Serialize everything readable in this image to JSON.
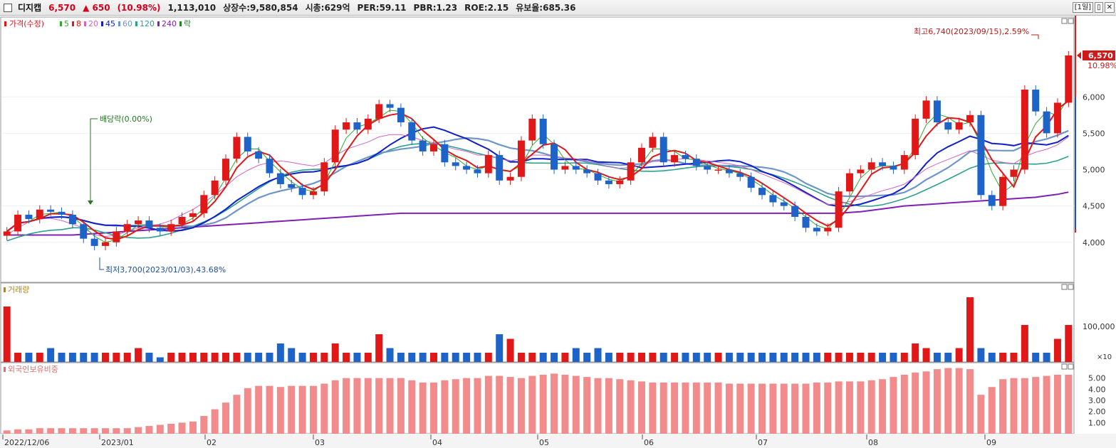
{
  "header": {
    "name": "디지캡",
    "price": "6,570",
    "change": "▲ 650",
    "change_pct": "(10.98%)",
    "volume": "1,113,010",
    "shares": "상장수:9,580,854",
    "mktcap": "시총:629억",
    "per": "PER:59.11",
    "pbr": "PBR:1.23",
    "roe": "ROE:2.15",
    "float_ratio": "유보율:685.36",
    "period_btn": "[1일]",
    "dock_btn": "▯",
    "close_btn": "✕"
  },
  "legend": {
    "price_label": "가격(수정)",
    "ma": [
      "5",
      "8",
      "20",
      "45",
      "60",
      "120",
      "240"
    ],
    "ma_colors": [
      "#2eaa2e",
      "#e01818",
      "#d264c8",
      "#1020c8",
      "#6e96c8",
      "#2da08c",
      "#8020b4"
    ],
    "ex_label": "락"
  },
  "annotations": {
    "high": "최고6,740(2023/09/15),2.59%",
    "low": "최저3,700(2023/01/03),43.68%",
    "dividend": "배당락(0.00%)",
    "last_price": "6,570",
    "last_pct": "10.98%"
  },
  "volume_panel": {
    "label": "거래량",
    "tick": "100,000",
    "scale": "×10"
  },
  "foreign_panel": {
    "label": "외국인보유비중",
    "ticks": [
      "5.00",
      "4.00",
      "3.00",
      "2.00",
      "1.00"
    ]
  },
  "x_labels": [
    "2022/12/06",
    "2023/01",
    "02",
    "03",
    "04",
    "05",
    "06",
    "07",
    "08",
    "09"
  ],
  "chart_data": {
    "type": "candlestick",
    "title": "디지캡",
    "y_ticks": [
      4000,
      4500,
      5000,
      5500,
      6000
    ],
    "y_tick_labels": [
      "4,000",
      "4,500",
      "5,000",
      "5,500",
      "6,000"
    ],
    "ylim": [
      3450,
      7000
    ],
    "colors": {
      "up": "#e01818",
      "down": "#1e64c8"
    },
    "high": 6740,
    "low": 3700,
    "last": 6570,
    "close_series": [
      4150,
      4380,
      4320,
      4450,
      4420,
      4380,
      4250,
      4050,
      3950,
      4000,
      4150,
      4250,
      4300,
      4200,
      4150,
      4250,
      4350,
      4400,
      4650,
      4850,
      5150,
      5450,
      5250,
      5150,
      4950,
      4800,
      4750,
      4650,
      4700,
      5100,
      5550,
      5650,
      5550,
      5700,
      5900,
      5850,
      5650,
      5400,
      5250,
      5350,
      5100,
      5050,
      5000,
      4950,
      5200,
      4850,
      4900,
      5400,
      5700,
      5350,
      5000,
      5050,
      5000,
      4950,
      4850,
      4800,
      4850,
      5100,
      5300,
      5450,
      5100,
      5200,
      5150,
      5050,
      5000,
      5000,
      4950,
      4900,
      4750,
      4650,
      4550,
      4500,
      4350,
      4200,
      4150,
      4200,
      4700,
      4950,
      5000,
      5100,
      5050,
      5000,
      5200,
      5700,
      5950,
      5650,
      5550,
      5650,
      5750,
      4650,
      4500,
      4900,
      5000,
      6100,
      5800,
      5500,
      5920,
      6570
    ],
    "ma20_series": [
      4100,
      4200,
      4280,
      4320,
      4330,
      4300,
      4250,
      4200,
      4100,
      4080,
      4100,
      4150,
      4200,
      4230,
      4250,
      4300,
      4380,
      4450,
      4550,
      4650,
      4770,
      4900,
      4990,
      5060,
      5100,
      5120,
      5100,
      5070,
      5050,
      5090,
      5190,
      5280,
      5330,
      5380,
      5450,
      5480,
      5480,
      5450,
      5400,
      5370,
      5320,
      5280,
      5250,
      5200,
      5200,
      5150,
      5120,
      5150,
      5200,
      5200,
      5180,
      5160,
      5150,
      5120,
      5080,
      5040,
      5020,
      5030,
      5060,
      5110,
      5120,
      5140,
      5150,
      5140,
      5120,
      5100,
      5080,
      5050,
      5000,
      4940,
      4880,
      4820,
      4750,
      4670,
      4590,
      4520,
      4530,
      4560,
      4600,
      4660,
      4710,
      4750,
      4800,
      4900,
      5010,
      5080,
      5140,
      5200,
      5260,
      5200,
      5130,
      5100,
      5080,
      5180,
      5240,
      5280,
      5340,
      5450
    ],
    "ma240_series": [
      4100,
      4100,
      4100,
      4100,
      4100,
      4100,
      4100,
      4110,
      4120,
      4130,
      4140,
      4150,
      4160,
      4170,
      4180,
      4190,
      4200,
      4210,
      4220,
      4230,
      4240,
      4250,
      4260,
      4270,
      4280,
      4290,
      4300,
      4310,
      4320,
      4330,
      4340,
      4350,
      4360,
      4370,
      4380,
      4390,
      4400,
      4400,
      4400,
      4400,
      4400,
      4400,
      4400,
      4400,
      4400,
      4400,
      4400,
      4400,
      4400,
      4400,
      4400,
      4400,
      4400,
      4400,
      4400,
      4400,
      4400,
      4400,
      4400,
      4400,
      4400,
      4400,
      4400,
      4400,
      4400,
      4400,
      4400,
      4400,
      4400,
      4400,
      4400,
      4400,
      4400,
      4400,
      4400,
      4400,
      4400,
      4410,
      4420,
      4440,
      4460,
      4480,
      4500,
      4510,
      4520,
      4530,
      4540,
      4550,
      4560,
      4570,
      4580,
      4590,
      4600,
      4610,
      4620,
      4640,
      4660,
      4690
    ],
    "volume_series": [
      12,
      2,
      2,
      2,
      3,
      2,
      2,
      2,
      2,
      2,
      2,
      2,
      3,
      2,
      1,
      2,
      2,
      2,
      2,
      2,
      2,
      2,
      2,
      2,
      2,
      4,
      3,
      2,
      2,
      2,
      4,
      2,
      2,
      2,
      6,
      3,
      2,
      2,
      2,
      2,
      2,
      2,
      2,
      2,
      2,
      6,
      5,
      2,
      2,
      2,
      2,
      2,
      3,
      2,
      3,
      2,
      2,
      2,
      2,
      2,
      2,
      2,
      2,
      2,
      2,
      2,
      2,
      2,
      2,
      2,
      2,
      2,
      2,
      2,
      2,
      2,
      2,
      2,
      2,
      2,
      2,
      2,
      2,
      4,
      3,
      2,
      2,
      3,
      14,
      3,
      2,
      2,
      2,
      8,
      2,
      2,
      5,
      8
    ],
    "foreign_ratio_series": [
      0.3,
      0.4,
      0.4,
      0.5,
      0.5,
      0.5,
      0.5,
      0.5,
      0.5,
      0.5,
      0.5,
      0.5,
      0.6,
      0.7,
      0.8,
      0.9,
      1.0,
      1.1,
      1.6,
      2.2,
      2.8,
      3.5,
      4.1,
      4.3,
      4.3,
      4.2,
      4.3,
      4.3,
      4.3,
      4.5,
      4.8,
      5.0,
      5.0,
      5.0,
      5.0,
      5.0,
      5.0,
      4.8,
      4.6,
      4.6,
      4.8,
      4.9,
      5.0,
      5.0,
      5.2,
      5.2,
      5.1,
      5.0,
      5.2,
      5.3,
      5.4,
      5.3,
      5.2,
      5.1,
      5.0,
      5.0,
      4.9,
      4.8,
      4.7,
      4.6,
      4.6,
      4.6,
      4.6,
      4.6,
      4.6,
      4.6,
      4.5,
      4.5,
      4.5,
      4.5,
      4.5,
      4.5,
      4.5,
      4.5,
      4.6,
      4.6,
      4.7,
      4.7,
      4.7,
      4.8,
      4.9,
      5.1,
      5.3,
      5.5,
      5.6,
      5.8,
      5.9,
      5.9,
      5.8,
      3.5,
      4.2,
      4.9,
      5.0,
      5.0,
      5.1,
      5.2,
      5.3,
      5.3
    ]
  }
}
